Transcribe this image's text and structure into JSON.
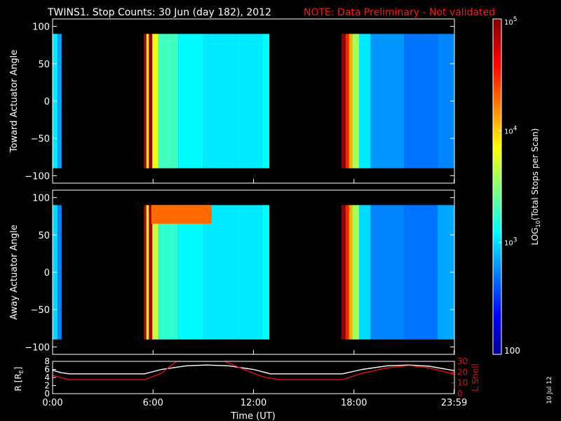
{
  "header": {
    "title": "TWINS1. Stop Counts: 30 Jun (day 182), 2012",
    "note": "NOTE: Data Preliminary - Not validated"
  },
  "footer": {
    "date_stamp": "10 Jul 12"
  },
  "colors": {
    "note": "#ff1a1a",
    "r_line": "#ffffff",
    "l_shell_line": "#e01010",
    "background": "#000000"
  },
  "chart_data": [
    {
      "type": "heatmap",
      "ylabel": "Toward Actuator Angle",
      "xlim": [
        0,
        24
      ],
      "ylim": [
        -110,
        110
      ],
      "y_ticks": [
        "100",
        "50",
        "0",
        "−50",
        "−100"
      ],
      "y_tick_values": [
        100,
        50,
        0,
        -50,
        -100
      ],
      "data_y_range": [
        -90,
        90
      ],
      "time_segments": [
        {
          "start": 0.0,
          "end": 0.55,
          "columns": [
            {
              "t": 0.0,
              "v": 3.05
            },
            {
              "t": 0.3,
              "v": 2.85
            },
            {
              "t": 0.5,
              "v": 2.75
            }
          ]
        },
        {
          "start": 5.45,
          "end": 12.95,
          "columns": [
            {
              "t": 5.45,
              "v": 4.85
            },
            {
              "t": 5.6,
              "v": 3.9
            },
            {
              "t": 5.75,
              "v": 4.9
            },
            {
              "t": 5.95,
              "v": 3.8
            },
            {
              "t": 6.3,
              "v": 3.3
            },
            {
              "t": 7.5,
              "v": 3.1
            },
            {
              "t": 9.0,
              "v": 3.05
            },
            {
              "t": 11.0,
              "v": 3.05
            },
            {
              "t": 12.5,
              "v": 3.1
            }
          ]
        },
        {
          "start": 17.25,
          "end": 23.99,
          "columns": [
            {
              "t": 17.25,
              "v": 4.95
            },
            {
              "t": 17.5,
              "v": 4.5
            },
            {
              "t": 17.7,
              "v": 4.1
            },
            {
              "t": 17.9,
              "v": 3.6
            },
            {
              "t": 18.3,
              "v": 3.05
            },
            {
              "t": 19.0,
              "v": 2.8
            },
            {
              "t": 21.0,
              "v": 2.7
            },
            {
              "t": 23.0,
              "v": 2.75
            }
          ]
        }
      ]
    },
    {
      "type": "heatmap",
      "ylabel": "Away Actuator Angle",
      "xlim": [
        0,
        24
      ],
      "ylim": [
        -110,
        110
      ],
      "y_ticks": [
        "100",
        "50",
        "0",
        "−50",
        "−100"
      ],
      "y_tick_values": [
        100,
        50,
        0,
        -50,
        -100
      ],
      "data_y_range": [
        -90,
        90
      ],
      "time_segments": [
        {
          "start": 0.0,
          "end": 0.55,
          "columns": [
            {
              "t": 0.0,
              "v": 3.0
            },
            {
              "t": 0.3,
              "v": 2.75
            },
            {
              "t": 0.5,
              "v": 2.7
            }
          ]
        },
        {
          "start": 5.45,
          "end": 12.95,
          "columns": [
            {
              "t": 5.45,
              "v": 4.8
            },
            {
              "t": 5.6,
              "v": 3.8
            },
            {
              "t": 5.75,
              "v": 4.85
            },
            {
              "t": 5.95,
              "v": 3.7
            },
            {
              "t": 6.3,
              "v": 3.25
            },
            {
              "t": 7.5,
              "v": 3.1
            },
            {
              "t": 9.0,
              "v": 3.05
            },
            {
              "t": 11.0,
              "v": 3.05
            },
            {
              "t": 12.5,
              "v": 3.1
            }
          ]
        },
        {
          "start": 17.25,
          "end": 23.99,
          "columns": [
            {
              "t": 17.25,
              "v": 4.95
            },
            {
              "t": 17.5,
              "v": 4.5
            },
            {
              "t": 17.7,
              "v": 4.1
            },
            {
              "t": 17.9,
              "v": 3.6
            },
            {
              "t": 18.3,
              "v": 3.0
            },
            {
              "t": 19.0,
              "v": 2.75
            },
            {
              "t": 21.0,
              "v": 2.7
            },
            {
              "t": 23.0,
              "v": 2.85
            }
          ]
        }
      ],
      "high_band": {
        "t_start": 5.9,
        "t_end": 9.5,
        "y_min": 65,
        "y_max": 90,
        "v": 4.3
      }
    },
    {
      "type": "line",
      "xlabel": "Time (UT)",
      "x_ticks": [
        "0:00",
        "6:00",
        "12:00",
        "18:00",
        "23:59"
      ],
      "x_tick_values": [
        0,
        6,
        12,
        18,
        23.98
      ],
      "ylabel_left": "R [R",
      "ylabel_left_sub": "E",
      "ylabel_left_close": "]",
      "ylabel_right": "L Shell",
      "y_left_ticks": [
        "8",
        "6",
        "4",
        "2",
        "0"
      ],
      "y_left_values": [
        8,
        6,
        4,
        2,
        0
      ],
      "y_right_ticks": [
        "30",
        "20",
        "10",
        "0"
      ],
      "y_right_values": [
        30,
        20,
        10,
        0
      ],
      "ylim_left": [
        0,
        8
      ],
      "ylim_right": [
        0,
        30
      ],
      "series": [
        {
          "name": "R",
          "axis": "left",
          "x": [
            0,
            0.5,
            1,
            3,
            5.5,
            6.5,
            8,
            9.2,
            10.5,
            12,
            13,
            15,
            17.3,
            18.5,
            20,
            21.3,
            22.5,
            23.99
          ],
          "y": [
            5.8,
            5.2,
            4.9,
            4.9,
            4.9,
            6.0,
            6.9,
            7.1,
            6.9,
            6.0,
            4.9,
            4.9,
            4.9,
            6.0,
            6.9,
            7.1,
            6.8,
            5.7
          ]
        },
        {
          "name": "L Shell",
          "axis": "right",
          "x": [
            0,
            0.5,
            1,
            3,
            5.5,
            6.5,
            7.4,
            10.3,
            11.5,
            12.5,
            13.5,
            15,
            17.3,
            18.5,
            20,
            21.3,
            22.5,
            23.99
          ],
          "y": [
            17,
            15,
            13,
            13,
            13,
            19,
            30,
            30,
            22,
            16,
            13,
            13,
            13,
            19,
            24,
            26,
            24,
            18
          ]
        }
      ]
    }
  ],
  "colorbar": {
    "label_prefix": "LOG",
    "label_sub": "10",
    "label_suffix": "(Total Stops per Scan)",
    "scale": "log",
    "vlim": [
      2,
      5
    ],
    "ticks": [
      {
        "v": 5,
        "base": "10",
        "exp": "5"
      },
      {
        "v": 4,
        "base": "10",
        "exp": "4"
      },
      {
        "v": 3,
        "base": "10",
        "exp": "3"
      },
      {
        "v": 2,
        "text": "100"
      }
    ]
  }
}
